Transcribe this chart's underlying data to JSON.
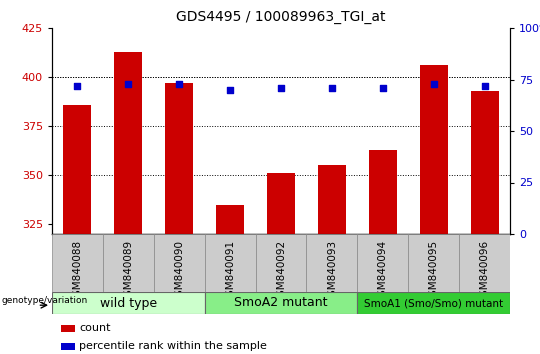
{
  "title": "GDS4495 / 100089963_TGI_at",
  "samples": [
    "GSM840088",
    "GSM840089",
    "GSM840090",
    "GSM840091",
    "GSM840092",
    "GSM840093",
    "GSM840094",
    "GSM840095",
    "GSM840096"
  ],
  "counts": [
    386,
    413,
    397,
    335,
    351,
    355,
    363,
    406,
    393
  ],
  "percentile_ranks": [
    72,
    73,
    73,
    70,
    71,
    71,
    71,
    73,
    72
  ],
  "ylim_left": [
    320,
    425
  ],
  "ylim_right": [
    0,
    100
  ],
  "yticks_left": [
    325,
    350,
    375,
    400,
    425
  ],
  "yticks_right": [
    0,
    25,
    50,
    75,
    100
  ],
  "bar_color": "#CC0000",
  "dot_color": "#0000CC",
  "bar_width": 0.55,
  "groups": [
    {
      "label": "wild type",
      "indices": [
        0,
        1,
        2
      ],
      "color": "#CCFFCC",
      "fontsize": 9
    },
    {
      "label": "SmoA2 mutant",
      "indices": [
        3,
        4,
        5
      ],
      "color": "#88EE88",
      "fontsize": 9
    },
    {
      "label": "SmoA1 (Smo/Smo) mutant",
      "indices": [
        6,
        7,
        8
      ],
      "color": "#33CC33",
      "fontsize": 7.5
    }
  ],
  "legend_count_label": "count",
  "legend_percentile_label": "percentile rank within the sample",
  "tick_label_color_left": "#CC0000",
  "tick_label_color_right": "#0000CC",
  "xlabel_bg_color": "#CCCCCC",
  "bg_color": "#FFFFFF",
  "grid_color": "#000000"
}
